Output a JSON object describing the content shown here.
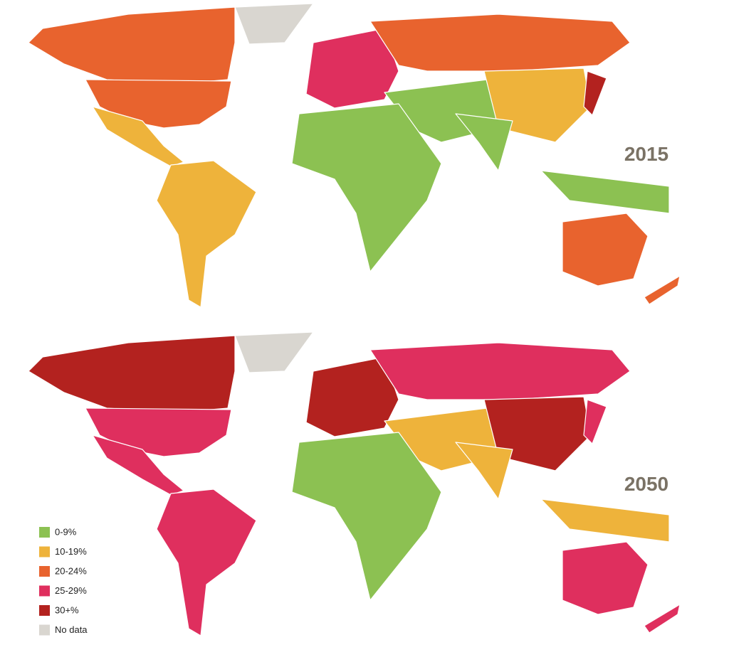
{
  "maps": [
    {
      "label": "2015"
    },
    {
      "label": "2050"
    }
  ],
  "legend": {
    "items": [
      {
        "label": "0-9%",
        "color": "#8cc152"
      },
      {
        "label": "10-19%",
        "color": "#eeb33b"
      },
      {
        "label": "20-24%",
        "color": "#e8632e"
      },
      {
        "label": "25-29%",
        "color": "#df2f5e"
      },
      {
        "label": "30+%",
        "color": "#b3221f"
      },
      {
        "label": "No data",
        "color": "#d9d6d0"
      }
    ]
  }
}
